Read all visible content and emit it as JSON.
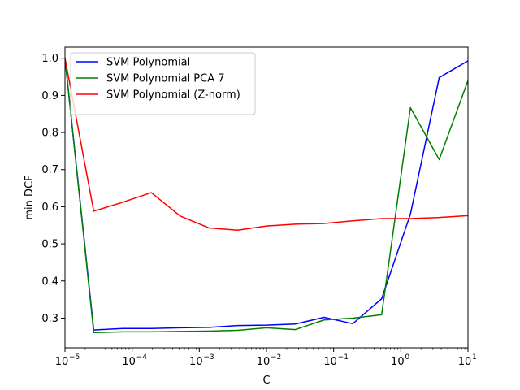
{
  "chart_data": {
    "type": "line",
    "title": "",
    "xlabel": "C",
    "ylabel": "min DCF",
    "xscale": "log",
    "xlim": [
      1e-05,
      10
    ],
    "ylim": [
      0.22,
      1.03
    ],
    "x_ticks": [
      {
        "value": 1e-05,
        "base": "10",
        "exp": "−5"
      },
      {
        "value": 0.0001,
        "base": "10",
        "exp": "−4"
      },
      {
        "value": 0.001,
        "base": "10",
        "exp": "−3"
      },
      {
        "value": 0.01,
        "base": "10",
        "exp": "−2"
      },
      {
        "value": 0.1,
        "base": "10",
        "exp": "−1"
      },
      {
        "value": 1,
        "base": "10",
        "exp": "0"
      },
      {
        "value": 10,
        "base": "10",
        "exp": "1"
      }
    ],
    "y_ticks": [
      {
        "value": 0.3,
        "label": "0.3"
      },
      {
        "value": 0.4,
        "label": "0.4"
      },
      {
        "value": 0.5,
        "label": "0.5"
      },
      {
        "value": 0.6,
        "label": "0.6"
      },
      {
        "value": 0.7,
        "label": "0.7"
      },
      {
        "value": 0.8,
        "label": "0.8"
      },
      {
        "value": 0.9,
        "label": "0.9"
      },
      {
        "value": 1.0,
        "label": "1.0"
      }
    ],
    "grid": false,
    "legend_position": "top-left",
    "x": [
      1e-05,
      2.68e-05,
      7.2e-05,
      0.000193,
      0.000518,
      0.00139,
      0.00373,
      0.01,
      0.0268,
      0.072,
      0.193,
      0.518,
      1.39,
      3.73,
      10
    ],
    "series": [
      {
        "name": "SVM Polynomial",
        "color": "#0000ff",
        "values": [
          1.0,
          0.268,
          0.272,
          0.272,
          0.274,
          0.275,
          0.28,
          0.281,
          0.284,
          0.302,
          0.285,
          0.352,
          0.58,
          0.948,
          0.993
        ]
      },
      {
        "name": "SVM Polynomial PCA 7",
        "color": "#008000",
        "values": [
          1.0,
          0.261,
          0.263,
          0.263,
          0.264,
          0.265,
          0.267,
          0.274,
          0.269,
          0.295,
          0.3,
          0.309,
          0.867,
          0.727,
          0.94
        ]
      },
      {
        "name": "SVM Polynomial (Z-norm)",
        "color": "#ff0000",
        "values": [
          1.0,
          0.588,
          0.612,
          0.638,
          0.575,
          0.543,
          0.537,
          0.548,
          0.553,
          0.555,
          0.562,
          0.568,
          0.568,
          0.571,
          0.576
        ]
      }
    ]
  }
}
